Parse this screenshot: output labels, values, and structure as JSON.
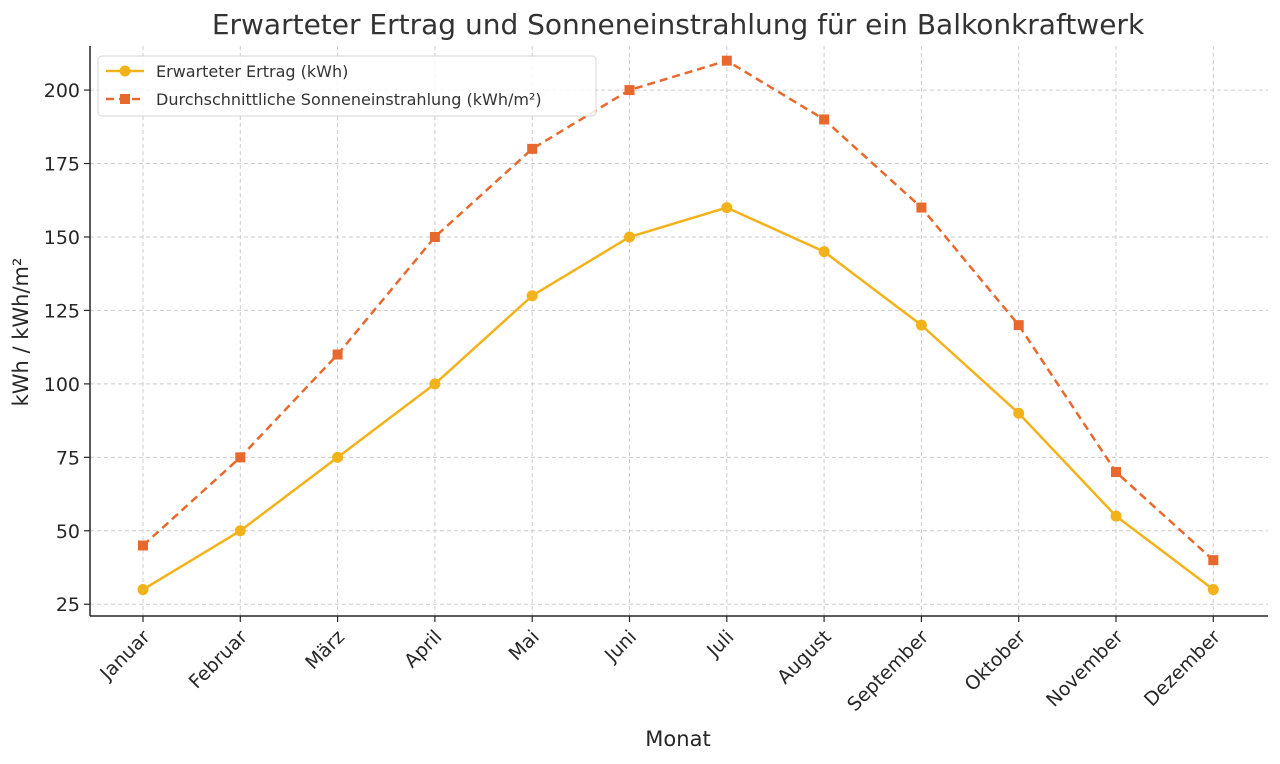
{
  "chart_data": {
    "type": "line",
    "title": "Erwarteter Ertrag und Sonneneinstrahlung für ein Balkonkraftwerk",
    "xlabel": "Monat",
    "ylabel": "kWh / kWh/m²",
    "categories": [
      "Januar",
      "Februar",
      "März",
      "April",
      "Mai",
      "Juni",
      "Juli",
      "August",
      "September",
      "Oktober",
      "November",
      "Dezember"
    ],
    "series": [
      {
        "name": "Erwarteter Ertrag (kWh)",
        "values": [
          30,
          50,
          75,
          100,
          130,
          150,
          160,
          145,
          120,
          90,
          55,
          30
        ],
        "color": "#f2b21a",
        "line_style": "solid",
        "marker": "circle"
      },
      {
        "name": "Durchschnittliche Sonneneinstrahlung (kWh/m²)",
        "values": [
          45,
          75,
          110,
          150,
          180,
          200,
          210,
          190,
          160,
          120,
          70,
          40
        ],
        "color": "#e8692d",
        "line_style": "dashed",
        "marker": "square"
      }
    ],
    "yticks": [
      25,
      50,
      75,
      100,
      125,
      150,
      175,
      200
    ],
    "ylim": [
      21,
      215
    ],
    "grid": true,
    "legend_position": "top-left"
  }
}
